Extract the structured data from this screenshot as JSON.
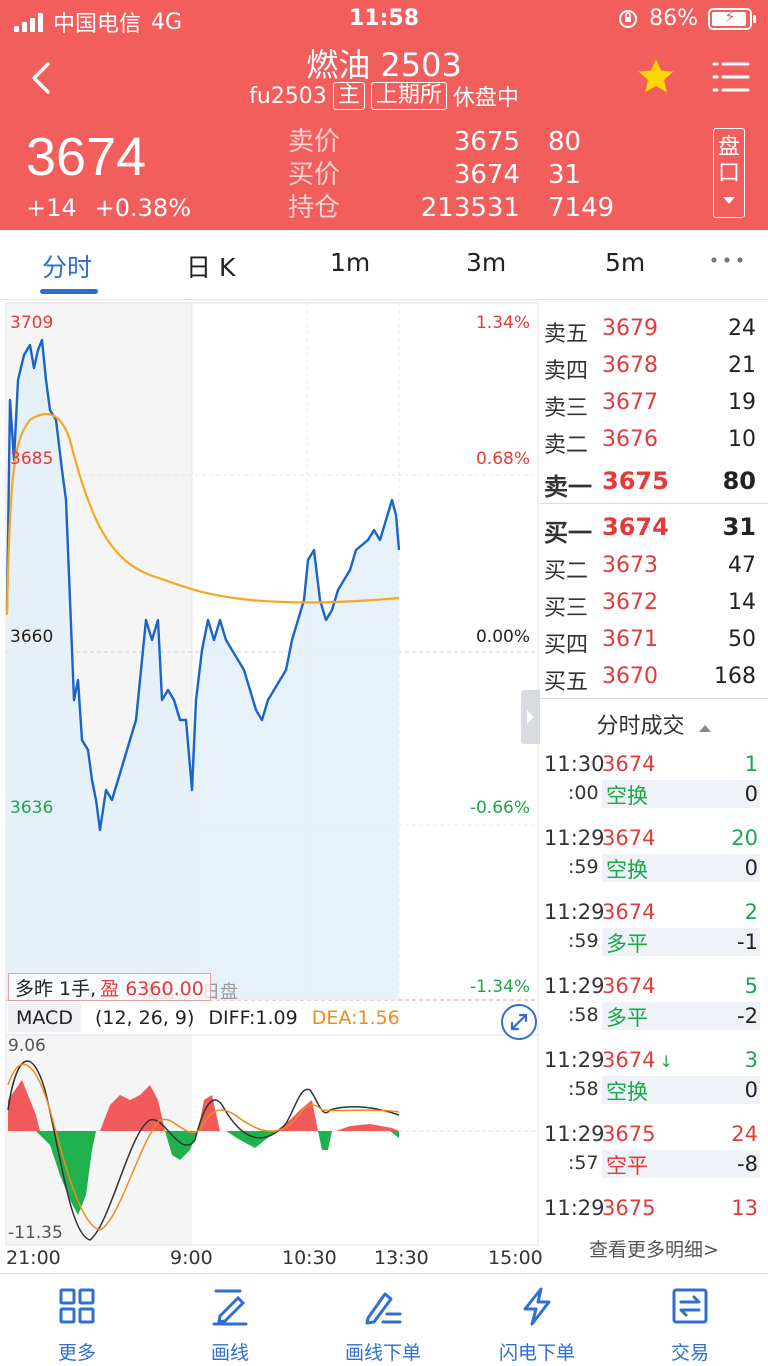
{
  "status_bar": {
    "carrier": "中国电信",
    "network": "4G",
    "time": "11:58",
    "battery": "86%"
  },
  "header": {
    "title": "燃油 2503",
    "code": "fu2503",
    "tag_main": "主",
    "tag_exchange": "上期所",
    "status": "休盘中",
    "price": "3674",
    "change": "+14",
    "change_pct": "+0.38%",
    "quote_labels": [
      "卖价",
      "买价",
      "持仓"
    ],
    "quote_values": [
      "3675",
      "3674",
      "213531"
    ],
    "quote_vols": [
      "80",
      "31",
      "7149"
    ],
    "pankou": [
      "盘",
      "口"
    ]
  },
  "tabs": [
    "分时",
    "日 K",
    "1m",
    "3m",
    "5m"
  ],
  "chart": {
    "left_labels": [
      "3709",
      "3685",
      "3660",
      "3636"
    ],
    "right_labels": [
      "1.34%",
      "0.68%",
      "0.00%",
      "-0.66%",
      "-1.34%"
    ],
    "position_text_prefix": "多昨 1手,",
    "position_text_profit": "盈 6360.00",
    "ghost_labels": [
      "夜盘",
      "日盘"
    ],
    "macd_name": "MACD",
    "macd_params": "(12, 26, 9)",
    "diff": "DIFF:1.09",
    "dea": "DEA:1.56",
    "macd_top": "9.06",
    "macd_bottom": "-11.35",
    "time_labels": [
      "21:00",
      "9:00",
      "10:30",
      "13:30",
      "15:00"
    ]
  },
  "orderbook": {
    "asks": [
      {
        "label": "卖五",
        "price": "3679",
        "vol": "24"
      },
      {
        "label": "卖四",
        "price": "3678",
        "vol": "21"
      },
      {
        "label": "卖三",
        "price": "3677",
        "vol": "19"
      },
      {
        "label": "卖二",
        "price": "3676",
        "vol": "10"
      },
      {
        "label": "卖一",
        "price": "3675",
        "vol": "80"
      }
    ],
    "bids": [
      {
        "label": "买一",
        "price": "3674",
        "vol": "31"
      },
      {
        "label": "买二",
        "price": "3673",
        "vol": "47"
      },
      {
        "label": "买三",
        "price": "3672",
        "vol": "14"
      },
      {
        "label": "买四",
        "price": "3671",
        "vol": "50"
      },
      {
        "label": "买五",
        "price": "3670",
        "vol": "168"
      }
    ]
  },
  "ticks": {
    "title": "分时成交",
    "more": "查看更多明细>",
    "items": [
      {
        "time": "11:30",
        "sec": ":00",
        "price": "3674",
        "type": "空换",
        "vol": "1",
        "oi": "0"
      },
      {
        "time": "11:29",
        "sec": ":59",
        "price": "3674",
        "type": "空换",
        "vol": "20",
        "oi": "0"
      },
      {
        "time": "11:29",
        "sec": ":59",
        "price": "3674",
        "type": "多平",
        "vol": "2",
        "oi": "-1"
      },
      {
        "time": "11:29",
        "sec": ":58",
        "price": "3674",
        "type": "多平",
        "vol": "5",
        "oi": "-2"
      },
      {
        "time": "11:29",
        "sec": ":58",
        "price": "3674",
        "type": "空换",
        "vol": "3",
        "oi": "0"
      },
      {
        "time": "11:29",
        "sec": ":57",
        "price": "3675",
        "type": "空平",
        "vol": "24",
        "oi": "-8"
      },
      {
        "time": "11:29",
        "sec": "",
        "price": "3675",
        "type": "",
        "vol": "13",
        "oi": ""
      }
    ]
  },
  "bottom_bar": [
    "更多",
    "画线",
    "画线下单",
    "闪电下单",
    "交易"
  ],
  "colors": {
    "header": "#f25e5b",
    "accent": "#2f6fd2",
    "up": "#e23b3b",
    "down": "#1aa84a"
  }
}
